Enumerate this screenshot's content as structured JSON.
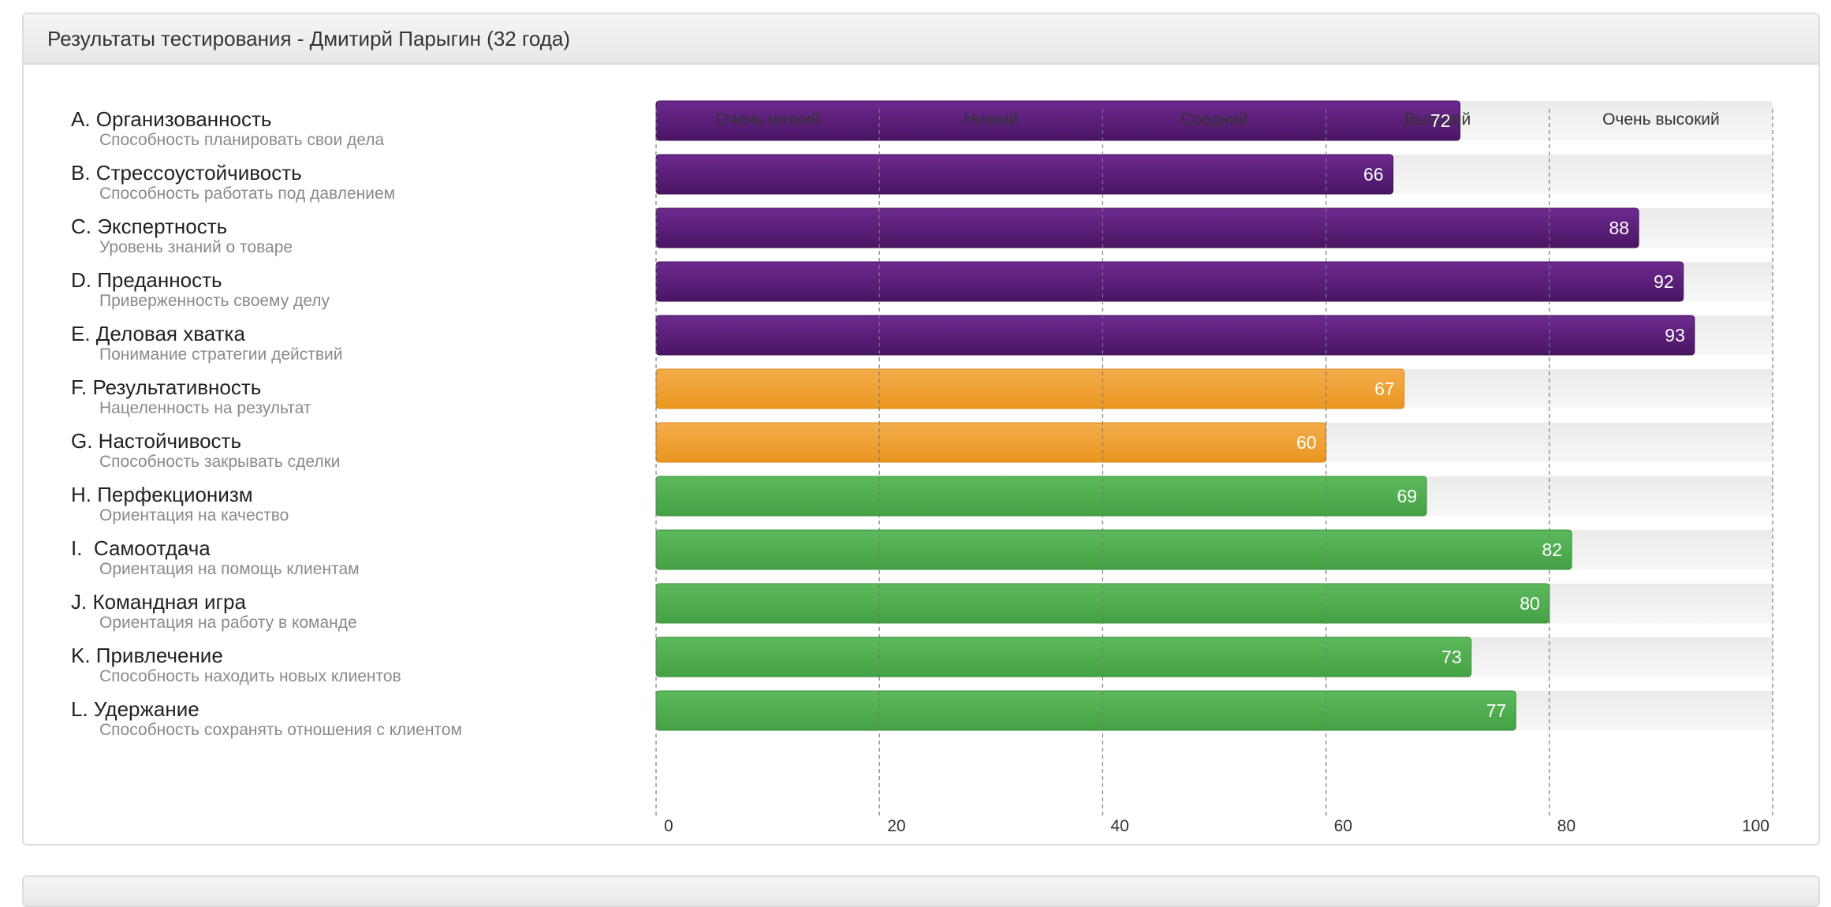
{
  "panel": {
    "title": "Результаты тестирования - Дмитирй Парыгин (32 года)"
  },
  "colors": {
    "purple": "#5c1f7a",
    "orange": "#efa032",
    "green": "#4eae4e",
    "track": "#f0f0f0"
  },
  "chart_data": {
    "type": "bar",
    "orientation": "horizontal",
    "xlim": [
      0,
      100
    ],
    "x_ticks": [
      0,
      20,
      40,
      60,
      80,
      100
    ],
    "bands": [
      "Очень низкий",
      "Низкий",
      "Средний",
      "Высокий",
      "Очень высокий"
    ],
    "grid": "dashed vertical lines at ticks",
    "categories": [
      {
        "title": "A. Организованность",
        "subtitle": "Способность планировать свои дела",
        "value": 72,
        "color": "purple"
      },
      {
        "title": "B. Стрессоустойчивость",
        "subtitle": "Способность работать под давлением",
        "value": 66,
        "color": "purple"
      },
      {
        "title": "C. Экспертность",
        "subtitle": "Уровень знаний о товаре",
        "value": 88,
        "color": "purple"
      },
      {
        "title": "D. Преданность",
        "subtitle": "Приверженность своему делу",
        "value": 92,
        "color": "purple"
      },
      {
        "title": "E. Деловая хватка",
        "subtitle": "Понимание стратегии действий",
        "value": 93,
        "color": "purple"
      },
      {
        "title": "F. Результативность",
        "subtitle": "Нацеленность на результат",
        "value": 67,
        "color": "orange"
      },
      {
        "title": "G. Настойчивость",
        "subtitle": "Способность закрывать сделки",
        "value": 60,
        "color": "orange"
      },
      {
        "title": "H. Перфекционизм",
        "subtitle": "Ориентация на качество",
        "value": 69,
        "color": "green"
      },
      {
        "title": "I.  Самоотдача",
        "subtitle": "Ориентация на помощь клиентам",
        "value": 82,
        "color": "green"
      },
      {
        "title": "J. Командная игра",
        "subtitle": "Ориентация на работу в команде",
        "value": 80,
        "color": "green"
      },
      {
        "title": "K. Привлечение",
        "subtitle": "Способность находить новых клиентов",
        "value": 73,
        "color": "green"
      },
      {
        "title": "L. Удержание",
        "subtitle": "Способность сохранять отношения с клиентом",
        "value": 77,
        "color": "green"
      }
    ]
  }
}
